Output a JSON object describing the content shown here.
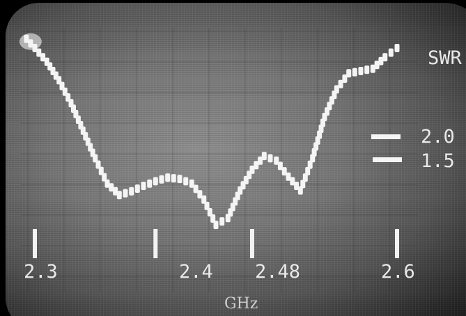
{
  "chart_data": {
    "type": "line",
    "title": "",
    "xlabel": "GHz",
    "ylabel": "SWR",
    "x_ticks": [
      {
        "value": 2.3,
        "label": "2.3"
      },
      {
        "value": 2.4,
        "label": "2.4"
      },
      {
        "value": 2.48,
        "label": "2.48"
      },
      {
        "value": 2.6,
        "label": "2.6"
      }
    ],
    "y_markers": [
      {
        "value": 2.0,
        "label": "2.0"
      },
      {
        "value": 1.5,
        "label": "1.5"
      }
    ],
    "series": [
      {
        "x": [
          2.293,
          2.3,
          2.31,
          2.32,
          2.33,
          2.34,
          2.35,
          2.36,
          2.37,
          2.38,
          2.39,
          2.4,
          2.41,
          2.42,
          2.43,
          2.44,
          2.45,
          2.46,
          2.47,
          2.48,
          2.49,
          2.5,
          2.51,
          2.52,
          2.53,
          2.54,
          2.55,
          2.56,
          2.57,
          2.58,
          2.59,
          2.6
        ],
        "y": [
          4.7,
          4.5,
          4.2,
          3.8,
          3.3,
          2.7,
          2.1,
          1.55,
          1.3,
          1.38,
          1.5,
          1.6,
          1.68,
          1.65,
          1.55,
          1.2,
          0.65,
          0.8,
          1.4,
          1.85,
          2.15,
          2.05,
          1.7,
          1.4,
          2.1,
          3.0,
          3.6,
          3.95,
          4.0,
          4.05,
          4.3,
          4.5
        ]
      }
    ],
    "xlim": [
      2.3,
      2.6
    ],
    "grid": true,
    "colors": {
      "trace": "#f4f4f4",
      "text": "#e9e9e9",
      "screen": "#7a7a7a"
    }
  }
}
